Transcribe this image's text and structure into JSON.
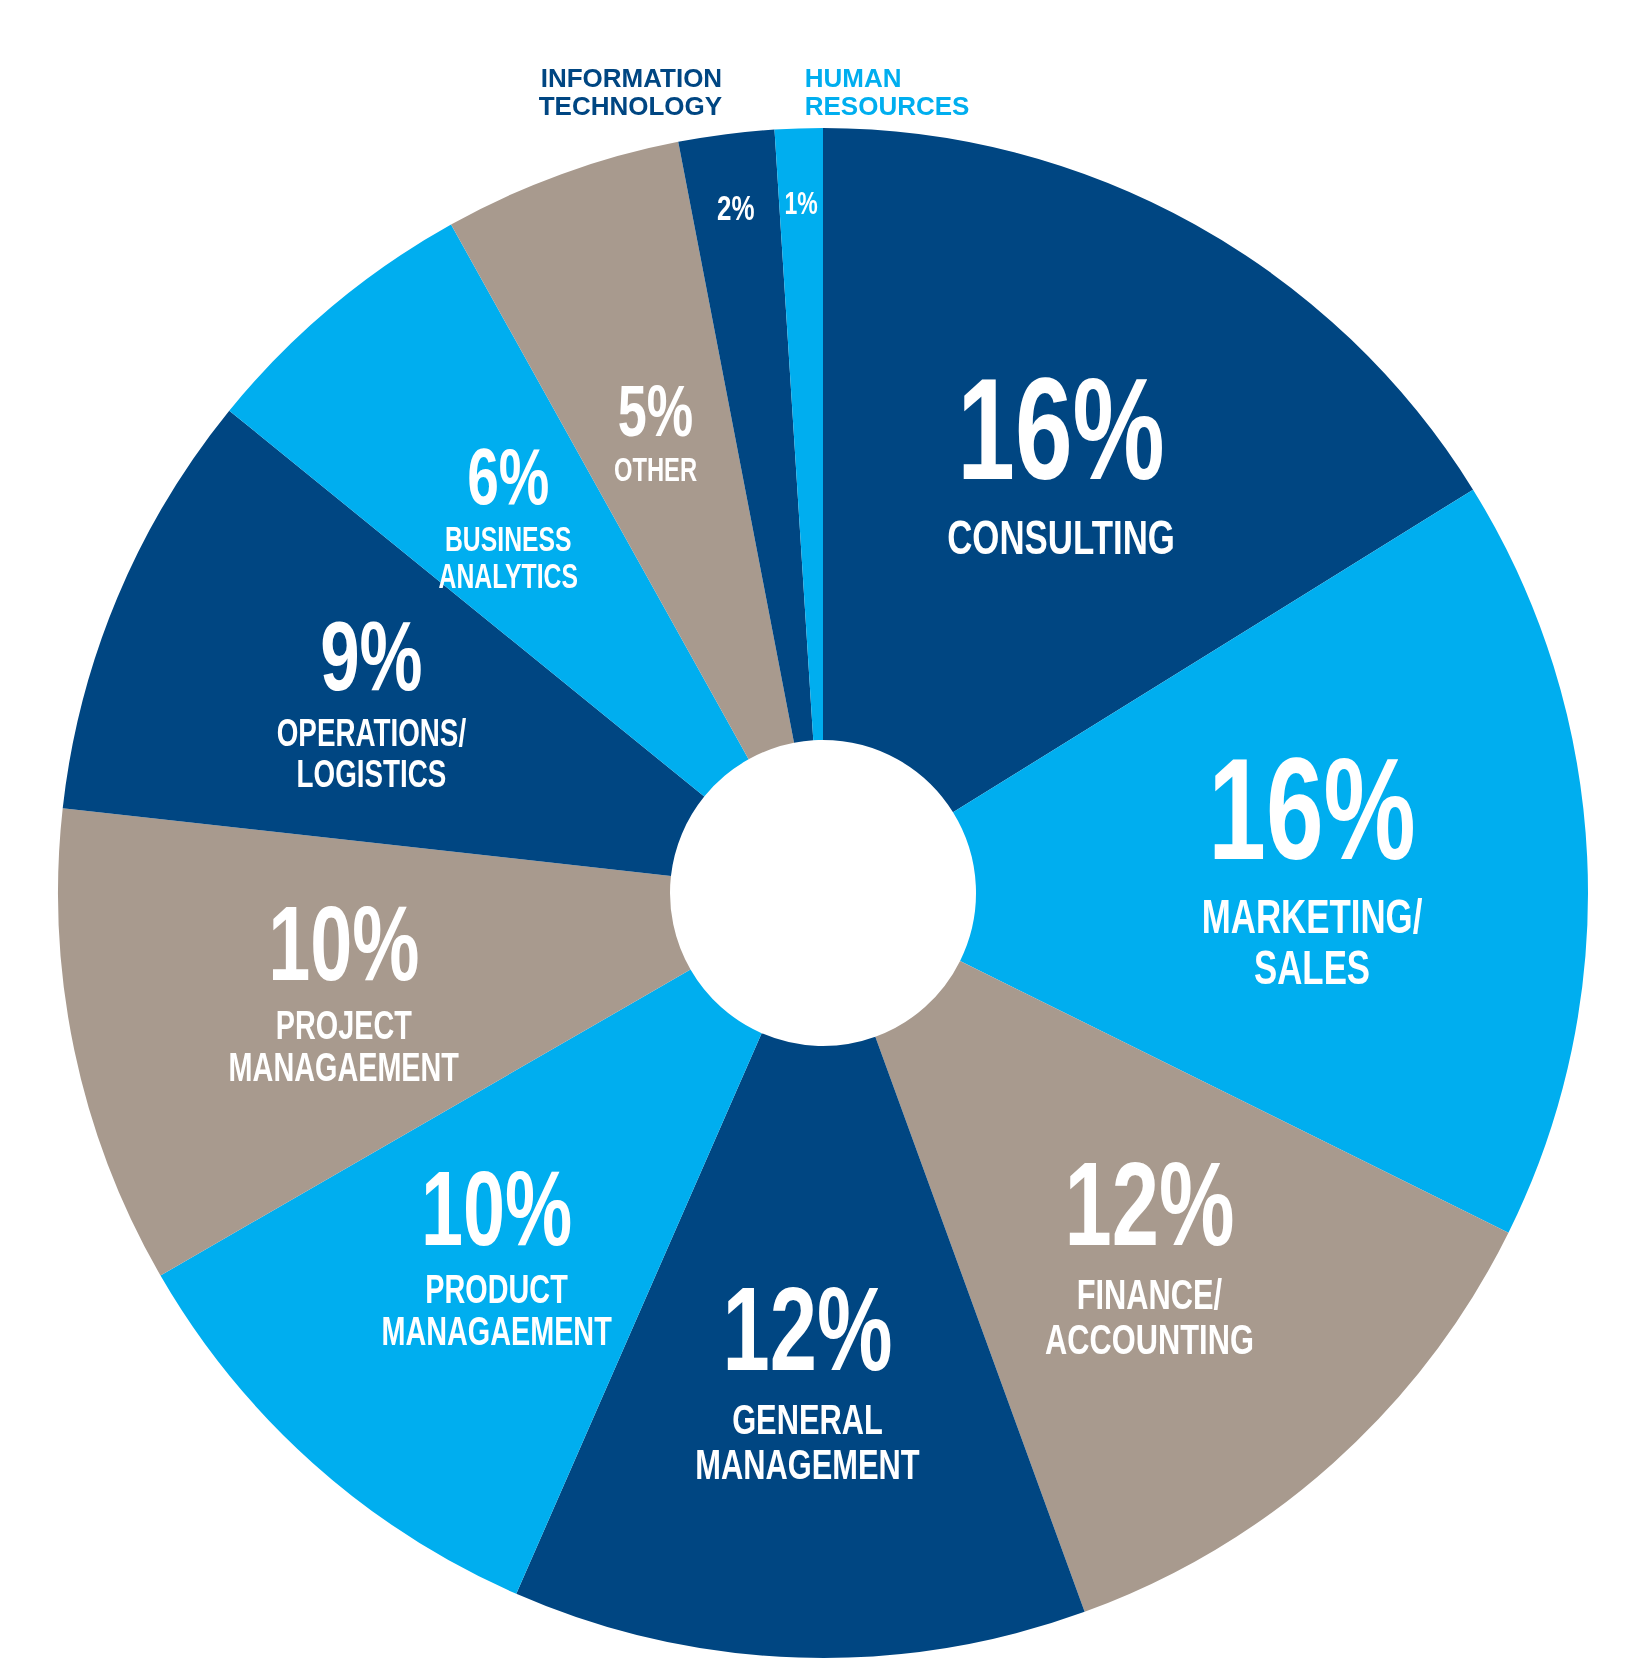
{
  "chart_data": {
    "type": "donut",
    "categories": [
      "CONSULTING",
      "MARKETING/\nSALES",
      "FINANCE/\nACCOUNTING",
      "GENERAL\nMANAGEMENT",
      "PRODUCT\nMANAGAEMENT",
      "PROJECT\nMANAGAEMENT",
      "OPERATIONS/\nLOGISTICS",
      "BUSINESS\nANALYTICS",
      "OTHER",
      "INFORMATION\nTECHNOLOGY",
      "HUMAN\nRESOURCES"
    ],
    "values": [
      16,
      16,
      12,
      12,
      10,
      10,
      9,
      6,
      5,
      2,
      1
    ],
    "colors": [
      "#004682",
      "#00aeef",
      "#a89a8e",
      "#004682",
      "#00aeef",
      "#a89a8e",
      "#004682",
      "#00aeef",
      "#a89a8e",
      "#004682",
      "#00aeef"
    ],
    "value_labels": [
      "16%",
      "16%",
      "12%",
      "12%",
      "10%",
      "10%",
      "9%",
      "6%",
      "5%",
      "2%",
      "1%"
    ],
    "legend": false
  }
}
